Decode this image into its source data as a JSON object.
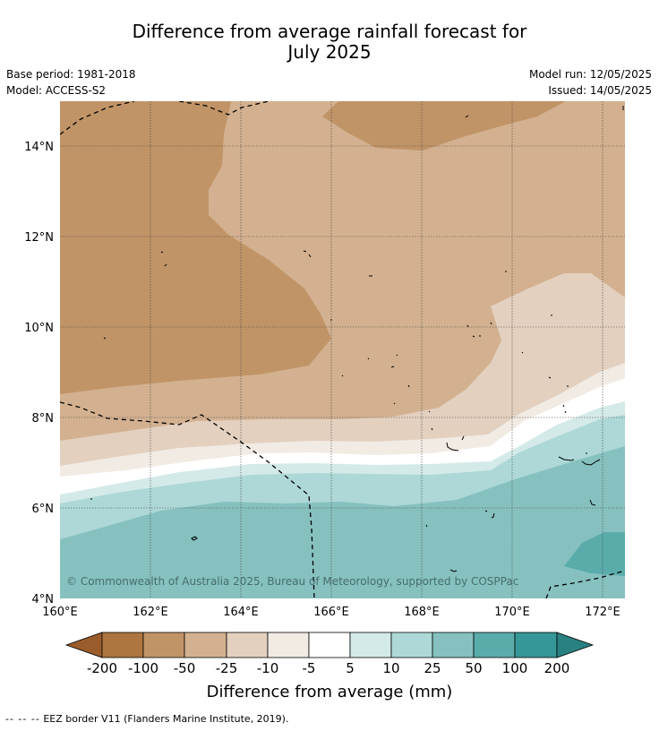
{
  "title": {
    "line1": "Difference from average rainfall forecast for",
    "line2": "July 2025"
  },
  "metadata": {
    "base_period": "Base period: 1981-2018",
    "model": "Model: ACCESS-S2",
    "model_run": "Model run: 12/05/2025",
    "issued": "Issued: 14/05/2025"
  },
  "map": {
    "copyright": "© Commonwealth of Australia 2025, Bureau of Meteorology, supported by COSPPac",
    "lat_ticks": [
      "14°N",
      "12°N",
      "10°N",
      "8°N",
      "6°N",
      "4°N"
    ],
    "lon_ticks": [
      "160°E",
      "162°E",
      "164°E",
      "166°E",
      "168°E",
      "170°E",
      "172°E"
    ],
    "lat_range": [
      4,
      15
    ],
    "lon_range": [
      160,
      172.5
    ],
    "overlays": [
      "gridlines",
      "eez-border",
      "island-outlines"
    ]
  },
  "legend": {
    "title": "Difference from average (mm)",
    "tick_labels": [
      "-200",
      "-100",
      "-50",
      "-25",
      "-10",
      "-5",
      "5",
      "10",
      "25",
      "50",
      "100",
      "200"
    ],
    "colors": [
      "#9a5c2b",
      "#ad7640",
      "#c19467",
      "#d3b190",
      "#e3d0bf",
      "#f1ebe4",
      "#ffffff",
      "#d4eae8",
      "#add8d7",
      "#86c1c0",
      "#5aacab",
      "#359797",
      "#2a8181"
    ]
  },
  "footer": {
    "dashes": "-- -- --",
    "text": "EEZ border V11 (Flanders Marine Institute, 2019)."
  }
}
